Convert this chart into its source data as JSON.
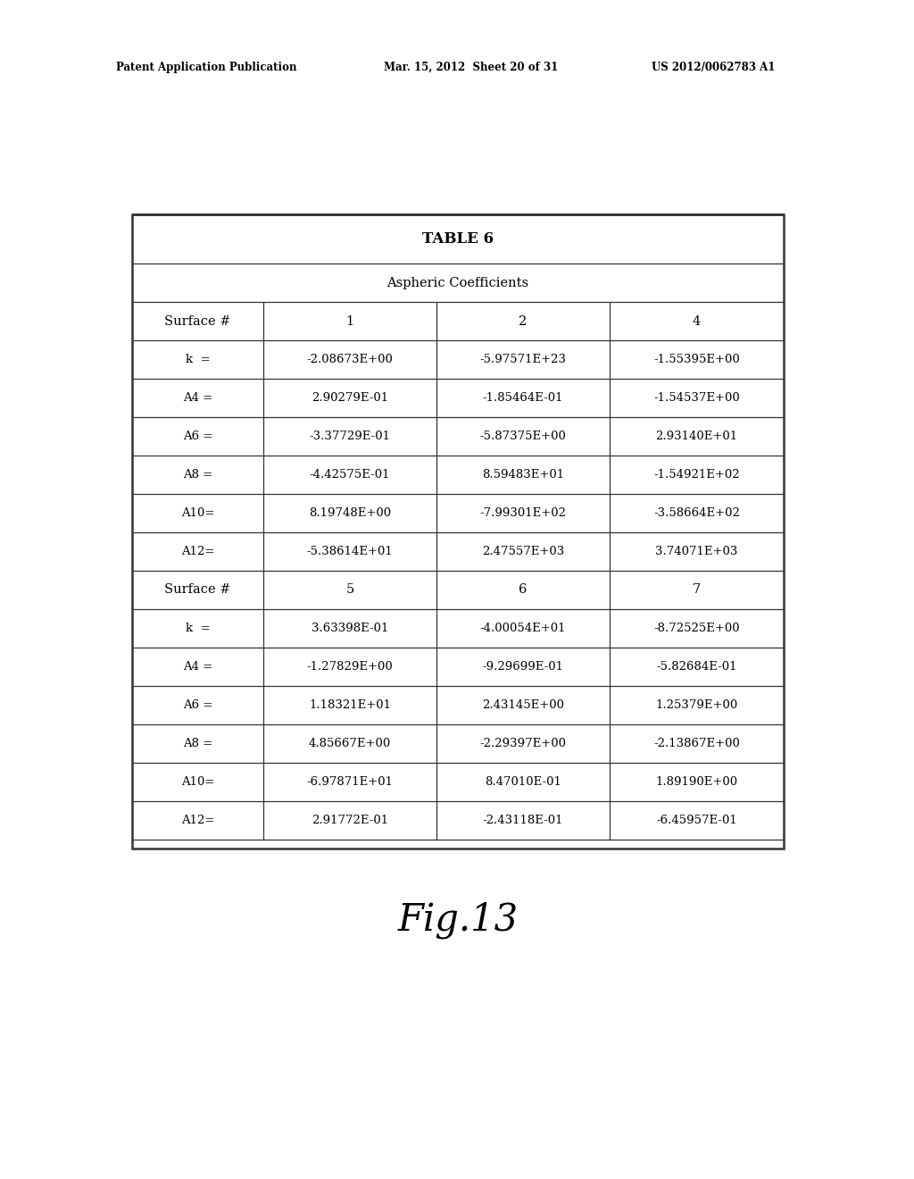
{
  "title": "TABLE 6",
  "subtitle": "Aspheric Coefficients",
  "patent_header_left": "Patent Application Publication",
  "patent_header_mid": "Mar. 15, 2012  Sheet 20 of 31",
  "patent_header_right": "US 2012/0062783 A1",
  "fig_label": "Fig.13",
  "table1": {
    "col_headers": [
      "Surface #",
      "1",
      "2",
      "4"
    ],
    "rows": [
      [
        "k  =",
        "-2.08673E+00",
        "-5.97571E+23",
        "-1.55395E+00"
      ],
      [
        "A4 =",
        "2.90279E-01",
        "-1.85464E-01",
        "-1.54537E+00"
      ],
      [
        "A6 =",
        "-3.37729E-01",
        "-5.87375E+00",
        "2.93140E+01"
      ],
      [
        "A8 =",
        "-4.42575E-01",
        "8.59483E+01",
        "-1.54921E+02"
      ],
      [
        "A10=",
        "8.19748E+00",
        "-7.99301E+02",
        "-3.58664E+02"
      ],
      [
        "A12=",
        "-5.38614E+01",
        "2.47557E+03",
        "3.74071E+03"
      ]
    ]
  },
  "table2": {
    "col_headers": [
      "Surface #",
      "5",
      "6",
      "7"
    ],
    "rows": [
      [
        "k  =",
        "3.63398E-01",
        "-4.00054E+01",
        "-8.72525E+00"
      ],
      [
        "A4 =",
        "-1.27829E+00",
        "-9.29699E-01",
        "-5.82684E-01"
      ],
      [
        "A6 =",
        "1.18321E+01",
        "2.43145E+00",
        "1.25379E+00"
      ],
      [
        "A8 =",
        "4.85667E+00",
        "-2.29397E+00",
        "-2.13867E+00"
      ],
      [
        "A10=",
        "-6.97871E+01",
        "8.47010E-01",
        "1.89190E+00"
      ],
      [
        "A12=",
        "2.91772E-01",
        "-2.43118E-01",
        "-6.45957E-01"
      ]
    ]
  },
  "background_color": "#ffffff",
  "table_border_color": "#333333",
  "header_text_color": "#000000",
  "cell_text_color": "#000000",
  "title_fontsize": 12,
  "subtitle_fontsize": 10.5,
  "cell_fontsize": 9.5,
  "header_fontsize": 10.5,
  "patent_fontsize": 8.5,
  "fig_fontsize": 30
}
